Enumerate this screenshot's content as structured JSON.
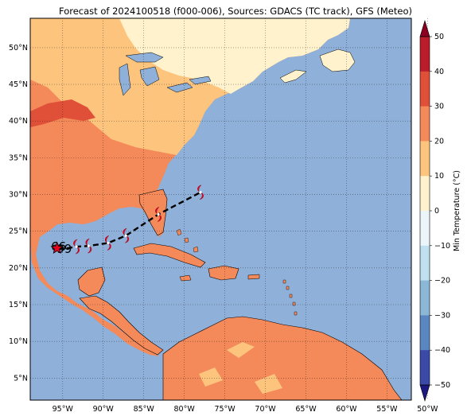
{
  "title": "Forecast of 2024100518 (f000-006), Sources: GDACS (TC track), GFS (Meteo)",
  "map": {
    "lon_range": [
      -99,
      -52
    ],
    "lat_range": [
      2,
      54
    ],
    "lon_ticks": [
      "95°W",
      "90°W",
      "85°W",
      "80°W",
      "75°W",
      "70°W",
      "65°W",
      "60°W",
      "55°W",
      "50°W"
    ],
    "lat_ticks": [
      "5°N",
      "10°N",
      "15°N",
      "20°N",
      "25°N",
      "30°N",
      "35°N",
      "40°N",
      "45°N",
      "50°N"
    ],
    "grid": "dotted",
    "ocean_color": "#8fb0d8"
  },
  "colorbar": {
    "label": "Min Temperature (°C)",
    "ticks": [
      "50",
      "40",
      "30",
      "20",
      "10",
      "0",
      "−10",
      "−20",
      "−30",
      "−40",
      "−50"
    ],
    "colors": [
      "#8b0021",
      "#bb1c2b",
      "#e05038",
      "#f4895a",
      "#fdc47e",
      "#fff2cc",
      "#ecf6fa",
      "#bfe0ee",
      "#8cb8d8",
      "#5a87c2",
      "#3a4aa6",
      "#1d1980"
    ]
  },
  "track": {
    "line_style": "dashed",
    "points": [
      {
        "lon": -95.5,
        "lat": 22.9,
        "label": "66"
      },
      {
        "lon": -94.8,
        "lat": 22.6,
        "label": "99"
      },
      {
        "lon": -93.3,
        "lat": 22.9
      },
      {
        "lon": -91.8,
        "lat": 23.0
      },
      {
        "lon": -89.4,
        "lat": 23.4
      },
      {
        "lon": -87.2,
        "lat": 24.4
      },
      {
        "lon": -83.2,
        "lat": 27.3
      },
      {
        "lon": -78.0,
        "lat": 30.3
      }
    ],
    "genesis_marker": "star-icon",
    "symbol": "hurricane-icon",
    "color": "#e8001c"
  }
}
